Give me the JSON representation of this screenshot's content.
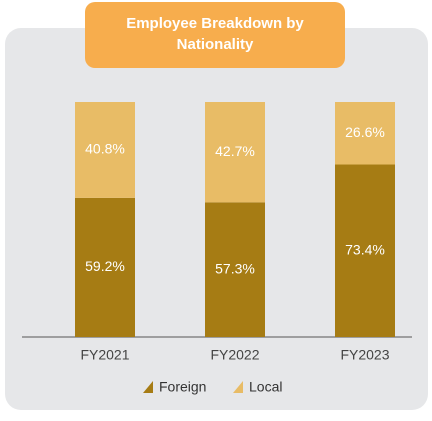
{
  "chart_data": {
    "type": "stacked-bar",
    "title": "Employee Breakdown by Nationality",
    "categories": [
      "FY2021",
      "FY2022",
      "FY2023"
    ],
    "ylim": [
      0,
      100
    ],
    "series": [
      {
        "name": "Foreign",
        "color": "#a67c14",
        "values": [
          59.2,
          57.3,
          73.4
        ],
        "value_labels": [
          "59.2%",
          "57.3%",
          "73.4%"
        ]
      },
      {
        "name": "Local",
        "color": "#e8bc66",
        "values": [
          40.8,
          42.7,
          26.6
        ],
        "value_labels": [
          "40.8%",
          "42.7%",
          "26.6%"
        ]
      }
    ]
  }
}
